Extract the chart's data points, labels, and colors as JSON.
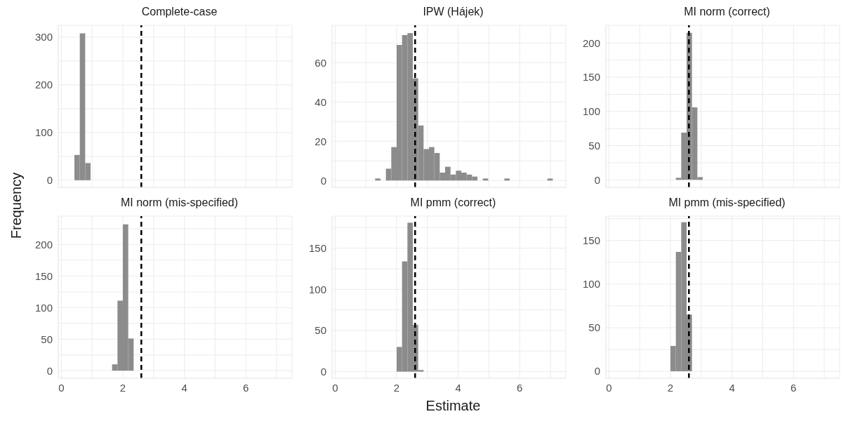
{
  "chart_data": [
    {
      "type": "histogram",
      "title": "Complete-case",
      "ylabel": "Frequency",
      "bins": [
        0.425,
        0.6,
        0.775,
        0.95
      ],
      "values": [
        53,
        308,
        36
      ],
      "color": "#8c8c8c",
      "xlim": [
        -0.1,
        7.5
      ],
      "xticks": [
        0,
        {
          "value": 1,
          "label": null
        },
        2,
        {
          "value": 3,
          "label": null
        },
        4,
        {
          "value": 5,
          "label": null
        },
        6,
        {
          "value": 7,
          "label": null
        }
      ],
      "ylim": [
        -15,
        325
      ],
      "yticks": [
        0,
        {
          "value": 50,
          "label": null
        },
        100,
        {
          "value": 150,
          "label": null
        },
        200,
        {
          "value": 250,
          "label": null
        },
        300
      ],
      "grid": true,
      "tick_labels": "y",
      "ref_lines": [
        {
          "axis": "x",
          "value": 2.6,
          "color": "#000000",
          "line_style": "dashed"
        }
      ]
    },
    {
      "type": "histogram",
      "title": "IPW (Hájek)",
      "bins": [
        1.3,
        1.475,
        1.65,
        1.825,
        2.0,
        2.175,
        2.35,
        2.525,
        2.7,
        2.875,
        3.05,
        3.225,
        3.4,
        3.575,
        3.75,
        3.925,
        4.1,
        4.275,
        4.45,
        4.625,
        4.8,
        4.975,
        5.15,
        5.325,
        5.5,
        5.675,
        5.85,
        6.025,
        6.2,
        6.375,
        6.55,
        6.725,
        6.9,
        7.075
      ],
      "values": [
        1,
        0,
        6,
        17,
        69,
        74,
        75,
        52,
        28,
        16,
        17,
        14,
        4,
        7,
        3,
        5,
        4,
        3,
        2,
        0,
        1,
        0,
        0,
        0,
        1,
        0,
        0,
        0,
        0,
        0,
        0,
        0,
        1
      ],
      "color": "#8c8c8c",
      "xlim": [
        -0.1,
        7.5
      ],
      "xticks": [
        0,
        {
          "value": 1,
          "label": null
        },
        2,
        {
          "value": 3,
          "label": null
        },
        4,
        {
          "value": 5,
          "label": null
        },
        6,
        {
          "value": 7,
          "label": null
        }
      ],
      "ylim": [
        -3.5,
        79
      ],
      "yticks": [
        0,
        {
          "value": 10,
          "label": null
        },
        20,
        {
          "value": 30,
          "label": null
        },
        40,
        {
          "value": 50,
          "label": null
        },
        60,
        {
          "value": 70,
          "label": null
        }
      ],
      "grid": true,
      "tick_labels": "y",
      "ref_lines": [
        {
          "axis": "x",
          "value": 2.6,
          "color": "#000000",
          "line_style": "dashed"
        }
      ]
    },
    {
      "type": "histogram",
      "title": "MI norm (correct)",
      "bins": [
        2.175,
        2.35,
        2.525,
        2.7,
        2.875,
        3.05
      ],
      "values": [
        3,
        69,
        215,
        106,
        4
      ],
      "color": "#8c8c8c",
      "xlim": [
        -0.1,
        7.5
      ],
      "xticks": [
        0,
        {
          "value": 1,
          "label": null
        },
        2,
        {
          "value": 3,
          "label": null
        },
        4,
        {
          "value": 5,
          "label": null
        },
        6,
        {
          "value": 7,
          "label": null
        }
      ],
      "ylim": [
        -11,
        226
      ],
      "yticks": [
        0,
        {
          "value": 25,
          "label": null
        },
        50,
        {
          "value": 75,
          "label": null
        },
        100,
        {
          "value": 125,
          "label": null
        },
        150,
        {
          "value": 175,
          "label": null
        },
        200
      ],
      "grid": true,
      "tick_labels": "y",
      "ref_lines": [
        {
          "axis": "x",
          "value": 2.6,
          "color": "#000000",
          "line_style": "dashed"
        }
      ]
    },
    {
      "type": "histogram",
      "title": "MI norm (mis-specified)",
      "bins": [
        1.65,
        1.825,
        2.0,
        2.175,
        2.35
      ],
      "values": [
        10,
        111,
        232,
        51
      ],
      "color": "#8c8c8c",
      "xlim": [
        -0.1,
        7.5
      ],
      "xticks": [
        0,
        {
          "value": 1,
          "label": null
        },
        2,
        {
          "value": 3,
          "label": null
        },
        4,
        {
          "value": 5,
          "label": null
        },
        6,
        {
          "value": 7,
          "label": null
        }
      ],
      "ylim": [
        -12,
        245
      ],
      "yticks": [
        0,
        {
          "value": 25,
          "label": null
        },
        50,
        {
          "value": 75,
          "label": null
        },
        100,
        {
          "value": 125,
          "label": null
        },
        150,
        {
          "value": 175,
          "label": null
        },
        200,
        {
          "value": 225,
          "label": null
        }
      ],
      "grid": true,
      "ref_lines": [
        {
          "axis": "x",
          "value": 2.6,
          "color": "#000000",
          "line_style": "dashed"
        }
      ]
    },
    {
      "type": "histogram",
      "title": "MI pmm (correct)",
      "xlabel": "Estimate",
      "bins": [
        2.0,
        2.175,
        2.35,
        2.525,
        2.7,
        2.875
      ],
      "values": [
        30,
        134,
        181,
        57,
        2
      ],
      "color": "#8c8c8c",
      "xlim": [
        -0.1,
        7.5
      ],
      "xticks": [
        0,
        {
          "value": 1,
          "label": null
        },
        2,
        {
          "value": 3,
          "label": null
        },
        4,
        {
          "value": 5,
          "label": null
        },
        6,
        {
          "value": 7,
          "label": null
        }
      ],
      "ylim": [
        -8,
        189
      ],
      "yticks": [
        0,
        {
          "value": 25,
          "label": null
        },
        50,
        {
          "value": 75,
          "label": null
        },
        100,
        {
          "value": 125,
          "label": null
        },
        150,
        {
          "value": 175,
          "label": null
        }
      ],
      "grid": true,
      "ref_lines": [
        {
          "axis": "x",
          "value": 2.6,
          "color": "#000000",
          "line_style": "dashed"
        }
      ]
    },
    {
      "type": "histogram",
      "title": "MI pmm (mis-specified)",
      "bins": [
        2.0,
        2.175,
        2.35,
        2.525,
        2.7
      ],
      "values": [
        29,
        137,
        171,
        65
      ],
      "color": "#8c8c8c",
      "xlim": [
        -0.1,
        7.5
      ],
      "xticks": [
        0,
        {
          "value": 1,
          "label": null
        },
        2,
        {
          "value": 3,
          "label": null
        },
        4,
        {
          "value": 5,
          "label": null
        },
        6,
        {
          "value": 7,
          "label": null
        }
      ],
      "ylim": [
        -8,
        178
      ],
      "yticks": [
        0,
        {
          "value": 25,
          "label": null
        },
        50,
        {
          "value": 75,
          "label": null
        },
        100,
        {
          "value": 125,
          "label": null
        },
        150,
        {
          "value": 175,
          "label": null
        }
      ],
      "grid": true,
      "ref_lines": [
        {
          "axis": "x",
          "value": 2.6,
          "color": "#000000",
          "line_style": "dashed"
        }
      ]
    }
  ]
}
